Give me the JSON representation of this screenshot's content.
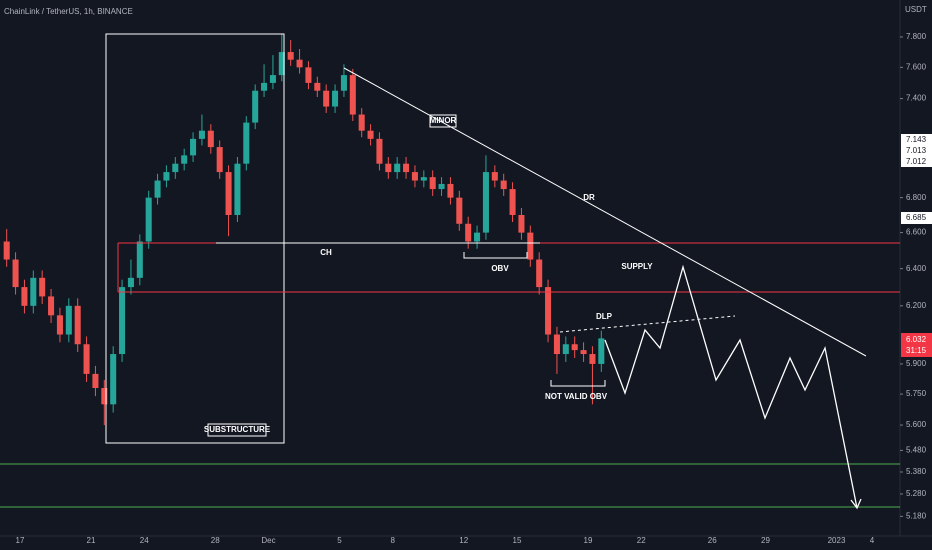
{
  "chart_data": {
    "type": "candlestick",
    "title": "ChainLink / TetherUS, 1h, BINANCE",
    "currency": "USDT",
    "log_scale": true,
    "grid": false,
    "up_color": "#26a69a",
    "down_color": "#ef5350",
    "ylim": [
      5.12,
      8.05
    ],
    "yticks": [
      {
        "value": 7.8,
        "label": "7.800"
      },
      {
        "value": 7.6,
        "label": "7.600"
      },
      {
        "value": 7.4,
        "label": "7.400"
      },
      {
        "value": 6.8,
        "label": "6.800"
      },
      {
        "value": 6.6,
        "label": "6.600"
      },
      {
        "value": 6.4,
        "label": "6.400"
      },
      {
        "value": 6.2,
        "label": "6.200"
      },
      {
        "value": 5.9,
        "label": "5.900"
      },
      {
        "value": 5.75,
        "label": "5.750"
      },
      {
        "value": 5.6,
        "label": "5.600"
      },
      {
        "value": 5.48,
        "label": "5.480"
      },
      {
        "value": 5.38,
        "label": "5.380"
      },
      {
        "value": 5.28,
        "label": "5.280"
      },
      {
        "value": 5.18,
        "label": "5.180"
      }
    ],
    "categories": [
      null,
      null,
      "17",
      null,
      null,
      null,
      null,
      null,
      null,
      null,
      "21",
      null,
      null,
      null,
      null,
      null,
      "24",
      null,
      null,
      null,
      null,
      null,
      null,
      null,
      "28",
      null,
      null,
      null,
      null,
      null,
      "Dec",
      null,
      null,
      null,
      null,
      null,
      null,
      null,
      "5",
      null,
      null,
      null,
      null,
      null,
      "8",
      null,
      null,
      null,
      null,
      null,
      null,
      null,
      "12",
      null,
      null,
      null,
      null,
      null,
      "15",
      null,
      null,
      null,
      null,
      null,
      null,
      null,
      "19",
      null,
      null,
      null,
      null,
      null,
      "22",
      null,
      null,
      null,
      null,
      null,
      null,
      null,
      "26",
      null,
      null,
      null,
      null,
      null,
      "29",
      null,
      null,
      null,
      null,
      null,
      null,
      null,
      "2023",
      null,
      null,
      null,
      "4",
      null
    ],
    "open": [
      6.55,
      6.45,
      6.3,
      6.2,
      6.35,
      6.25,
      6.15,
      6.05,
      6.2,
      6.0,
      5.85,
      5.78,
      5.7,
      5.95,
      6.3,
      6.35,
      6.55,
      6.8,
      6.9,
      6.95,
      7.0,
      7.05,
      7.15,
      7.2,
      7.1,
      6.95,
      6.7,
      7.0,
      7.25,
      7.45,
      7.5,
      7.55,
      7.7,
      7.65,
      7.6,
      7.5,
      7.45,
      7.35,
      7.45,
      7.55,
      7.3,
      7.2,
      7.15,
      7.0,
      6.95,
      7.0,
      6.95,
      6.9,
      6.92,
      6.85,
      6.88,
      6.8,
      6.65,
      6.55,
      6.6,
      6.95,
      6.9,
      6.85,
      6.7,
      6.6,
      6.45,
      6.3,
      6.05,
      5.95,
      6.0,
      5.97,
      5.95,
      5.9,
      null,
      null,
      null,
      null,
      null,
      null,
      null,
      null,
      null,
      null,
      null,
      null,
      null,
      null,
      null,
      null,
      null,
      null,
      null,
      null,
      null,
      null,
      null,
      null,
      null,
      null,
      null,
      null,
      null,
      null,
      null,
      null
    ],
    "high": [
      6.62,
      6.49,
      6.34,
      6.39,
      6.39,
      6.29,
      6.19,
      6.24,
      6.24,
      6.04,
      5.89,
      5.82,
      5.99,
      6.34,
      6.45,
      6.59,
      6.84,
      6.94,
      6.99,
      7.04,
      7.09,
      7.19,
      7.3,
      7.24,
      7.14,
      6.99,
      7.04,
      7.29,
      7.49,
      7.62,
      7.68,
      7.82,
      7.78,
      7.72,
      7.64,
      7.54,
      7.49,
      7.49,
      7.62,
      7.59,
      7.34,
      7.24,
      7.19,
      7.04,
      7.04,
      7.04,
      6.99,
      6.96,
      6.96,
      6.92,
      6.92,
      6.84,
      6.69,
      6.64,
      7.05,
      6.99,
      6.94,
      6.89,
      6.74,
      6.64,
      6.49,
      6.34,
      6.09,
      6.04,
      6.04,
      6.01,
      5.99,
      6.07,
      null,
      null,
      null,
      null,
      null,
      null,
      null,
      null,
      null,
      null,
      null,
      null,
      null,
      null,
      null,
      null,
      null,
      null,
      null,
      null,
      null,
      null,
      null,
      null,
      null,
      null,
      null,
      null,
      null,
      null,
      null,
      null
    ],
    "low": [
      6.41,
      6.26,
      6.16,
      6.16,
      6.21,
      6.11,
      6.01,
      6.01,
      5.96,
      5.81,
      5.74,
      5.6,
      5.66,
      5.91,
      6.26,
      6.31,
      6.51,
      6.76,
      6.86,
      6.91,
      6.96,
      7.01,
      7.11,
      7.06,
      6.91,
      6.58,
      6.66,
      6.96,
      7.21,
      7.41,
      7.46,
      7.51,
      7.61,
      7.56,
      7.46,
      7.41,
      7.31,
      7.31,
      7.41,
      7.26,
      7.16,
      7.11,
      6.96,
      6.91,
      6.91,
      6.91,
      6.86,
      6.86,
      6.81,
      6.81,
      6.76,
      6.61,
      6.51,
      6.51,
      6.56,
      6.86,
      6.81,
      6.66,
      6.56,
      6.41,
      6.26,
      6.01,
      5.85,
      5.91,
      5.93,
      5.91,
      5.7,
      5.86,
      null,
      null,
      null,
      null,
      null,
      null,
      null,
      null,
      null,
      null,
      null,
      null,
      null,
      null,
      null,
      null,
      null,
      null,
      null,
      null,
      null,
      null,
      null,
      null,
      null,
      null,
      null,
      null,
      null,
      null,
      null,
      null
    ],
    "close": [
      6.45,
      6.3,
      6.2,
      6.35,
      6.25,
      6.15,
      6.05,
      6.2,
      6.0,
      5.85,
      5.78,
      5.7,
      5.95,
      6.3,
      6.35,
      6.55,
      6.8,
      6.9,
      6.95,
      7.0,
      7.05,
      7.15,
      7.2,
      7.1,
      6.95,
      6.7,
      7.0,
      7.25,
      7.45,
      7.5,
      7.55,
      7.7,
      7.65,
      7.6,
      7.5,
      7.45,
      7.35,
      7.45,
      7.55,
      7.3,
      7.2,
      7.15,
      7.0,
      6.95,
      7.0,
      6.95,
      6.9,
      6.92,
      6.85,
      6.88,
      6.8,
      6.65,
      6.55,
      6.6,
      6.95,
      6.9,
      6.85,
      6.7,
      6.6,
      6.45,
      6.3,
      6.05,
      5.95,
      6.0,
      5.97,
      5.95,
      5.9,
      6.03,
      null,
      null,
      null,
      null,
      null,
      null,
      null,
      null,
      null,
      null,
      null,
      null,
      null,
      null,
      null,
      null,
      null,
      null,
      null,
      null,
      null,
      null,
      null,
      null,
      null,
      null,
      null,
      null,
      null,
      null,
      null,
      null
    ],
    "annotations": {
      "minor": "MINOR",
      "dr": "DR",
      "ch": "CH",
      "obv": "OBV",
      "supply": "SUPPLY",
      "dlp": "DLP",
      "not_valid_obv": "NOT VALID OBV",
      "substructure": "SUBSTRUCTURE"
    },
    "price_badges": [
      "7.143",
      "7.013",
      "7.012",
      "6.685",
      "6.032",
      "31:15"
    ]
  }
}
